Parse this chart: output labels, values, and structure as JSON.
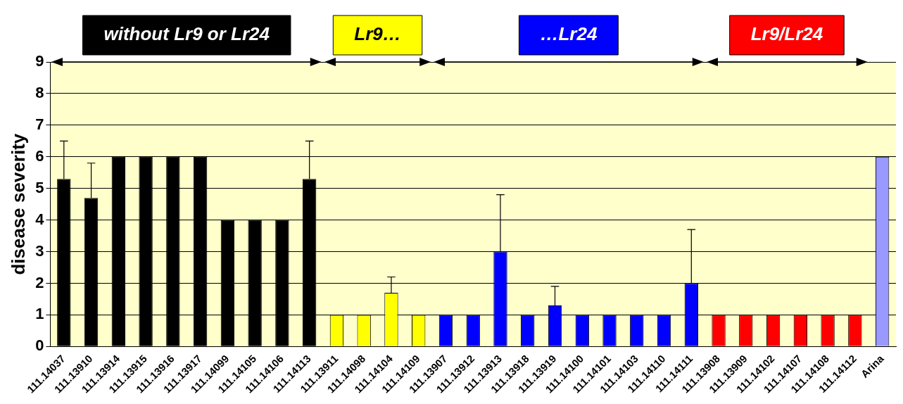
{
  "chart_data": {
    "type": "bar",
    "ylabel": "disease severity",
    "categories": [
      "111.14037",
      "111.13910",
      "111.13914",
      "111.13915",
      "111.13916",
      "111.13917",
      "111.14099",
      "111.14105",
      "111.14106",
      "111.14113",
      "111.13911",
      "111.14098",
      "111.14104",
      "111.14109",
      "111.13907",
      "111.13912",
      "111.13913",
      "111.13918",
      "111.13919",
      "111.14100",
      "111.14101",
      "111.14103",
      "111.14110",
      "111.14111",
      "111.13908",
      "111.13909",
      "111.14102",
      "111.14107",
      "111.14108",
      "111.14112",
      "Arina"
    ],
    "values": [
      5.3,
      4.7,
      6,
      6,
      6,
      6,
      4,
      4,
      4,
      5.3,
      1,
      1,
      1.7,
      1,
      1,
      1,
      3,
      1,
      1.3,
      1,
      1,
      1,
      1,
      2,
      1,
      1,
      1,
      1,
      1,
      1,
      6
    ],
    "colors": [
      "#000000",
      "#000000",
      "#000000",
      "#000000",
      "#000000",
      "#000000",
      "#000000",
      "#000000",
      "#000000",
      "#000000",
      "#ffff00",
      "#ffff00",
      "#ffff00",
      "#ffff00",
      "#0000ff",
      "#0000ff",
      "#0000ff",
      "#0000ff",
      "#0000ff",
      "#0000ff",
      "#0000ff",
      "#0000ff",
      "#0000ff",
      "#0000ff",
      "#ff0000",
      "#ff0000",
      "#ff0000",
      "#ff0000",
      "#ff0000",
      "#ff0000",
      "#9999ff"
    ],
    "errors": [
      [
        5.3,
        6.5
      ],
      [
        4.7,
        5.8
      ],
      null,
      null,
      null,
      null,
      null,
      null,
      null,
      [
        5.3,
        6.5
      ],
      null,
      null,
      [
        1.7,
        2.2
      ],
      null,
      null,
      null,
      [
        3,
        4.8
      ],
      null,
      [
        1.3,
        1.9
      ],
      null,
      null,
      null,
      null,
      [
        2,
        3.7
      ],
      null,
      null,
      null,
      null,
      null,
      null,
      null
    ],
    "ylim": [
      0,
      9
    ],
    "yticks": [
      0,
      1,
      2,
      3,
      4,
      5,
      6,
      7,
      8,
      9
    ],
    "grid": "y",
    "legend": false,
    "annotations": [
      "without Lr9 or Lr24",
      "Lr9…",
      "…Lr24",
      "Lr9/Lr24"
    ]
  }
}
